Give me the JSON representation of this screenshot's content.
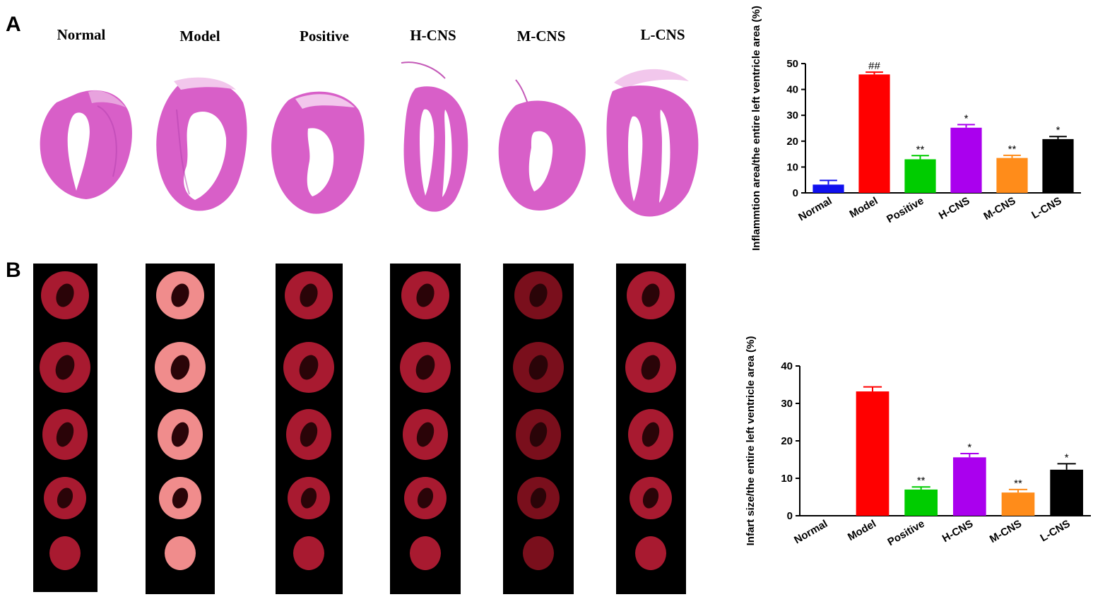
{
  "panels": {
    "a": "A",
    "b": "B"
  },
  "group_labels": [
    "Normal",
    "Model",
    "Positive",
    "H-CNS",
    "M-CNS",
    "L-CNS"
  ],
  "colors": {
    "he_stain": "#d85fc8",
    "he_stain_dark": "#b23fae",
    "ttc_red": "#a01830",
    "ttc_dark": "#6e0e1e",
    "ttc_pale": "#e89aa0",
    "strip_bg": "#000000"
  },
  "chart_data": [
    {
      "type": "bar",
      "panel": "A",
      "categories": [
        "Normal",
        "Model",
        "Positive",
        "H-CNS",
        "M-CNS",
        "L-CNS"
      ],
      "values": [
        3.2,
        45.8,
        13.0,
        25.2,
        13.5,
        20.8
      ],
      "errors": [
        1.6,
        0.9,
        1.4,
        1.2,
        1.0,
        1.0
      ],
      "colors": [
        "#1010ee",
        "#ff0000",
        "#00cc00",
        "#aa00ee",
        "#ff8c1a",
        "#000000"
      ],
      "annotations": [
        "",
        "##",
        "**",
        "*",
        "**",
        "*"
      ],
      "ylabel": "Inflammtion area/the entire left ventricle area (%)",
      "xlabel": "",
      "ylim": [
        0,
        50
      ],
      "yticks": [
        0,
        10,
        20,
        30,
        40,
        50
      ],
      "grid": false
    },
    {
      "type": "bar",
      "panel": "B",
      "categories": [
        "Normal",
        "Model",
        "Positive",
        "H-CNS",
        "M-CNS",
        "L-CNS"
      ],
      "values": [
        0,
        33.2,
        7.0,
        15.6,
        6.2,
        12.3
      ],
      "errors": [
        0,
        1.2,
        0.7,
        1.0,
        0.8,
        1.6
      ],
      "colors": [
        "#1010ee",
        "#ff0000",
        "#00cc00",
        "#aa00ee",
        "#ff8c1a",
        "#000000"
      ],
      "annotations": [
        "",
        "",
        "**",
        "*",
        "**",
        "*"
      ],
      "ylabel": "Infart size/the entire left ventricle area (%)",
      "xlabel": "",
      "ylim": [
        0,
        40
      ],
      "yticks": [
        0,
        10,
        20,
        30,
        40
      ],
      "grid": false
    }
  ]
}
